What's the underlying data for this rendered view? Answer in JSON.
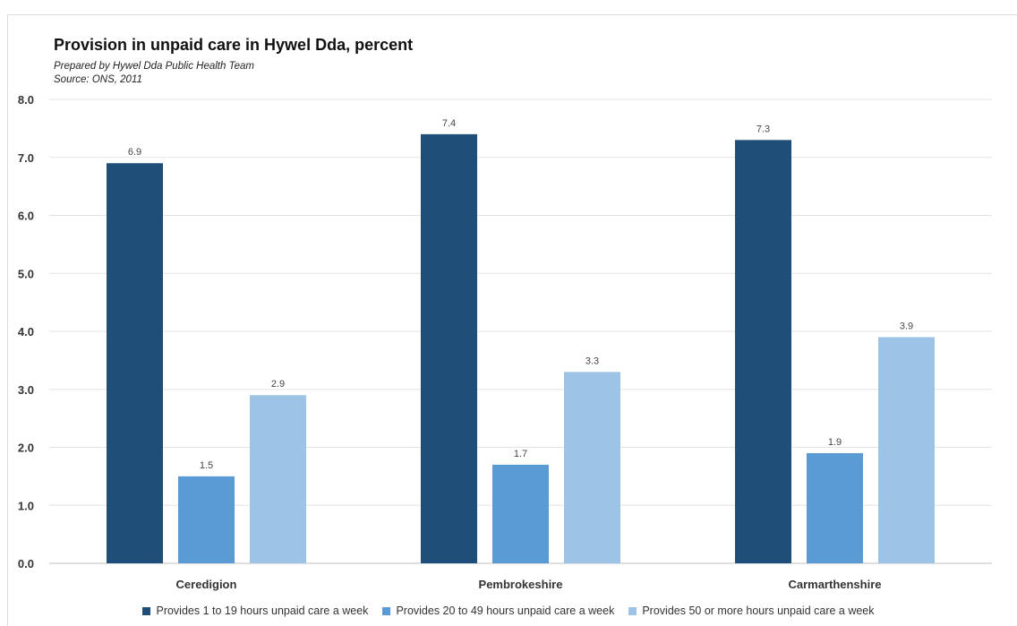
{
  "chart_data": {
    "type": "bar",
    "title": "Provision in unpaid care in Hywel Dda, percent",
    "subtitle_1": "Prepared by Hywel Dda Public Health Team",
    "subtitle_2": "Source: ONS, 2011",
    "categories": [
      "Ceredigion",
      "Pembrokeshire",
      "Carmarthenshire"
    ],
    "series": [
      {
        "name": "Provides 1 to 19 hours unpaid care a week",
        "color": "#1f4e79",
        "values": [
          6.9,
          7.4,
          7.3
        ]
      },
      {
        "name": "Provides 20 to 49 hours unpaid care a week",
        "color": "#5b9bd5",
        "values": [
          1.5,
          1.7,
          1.9
        ]
      },
      {
        "name": "Provides 50 or more hours unpaid care a week",
        "color": "#9dc3e6",
        "values": [
          2.9,
          3.3,
          3.9
        ]
      }
    ],
    "ylim": [
      0,
      8
    ],
    "yticks": [
      "0.0",
      "1.0",
      "2.0",
      "3.0",
      "4.0",
      "5.0",
      "6.0",
      "7.0",
      "8.0"
    ],
    "grid": true,
    "legend_position": "bottom"
  }
}
